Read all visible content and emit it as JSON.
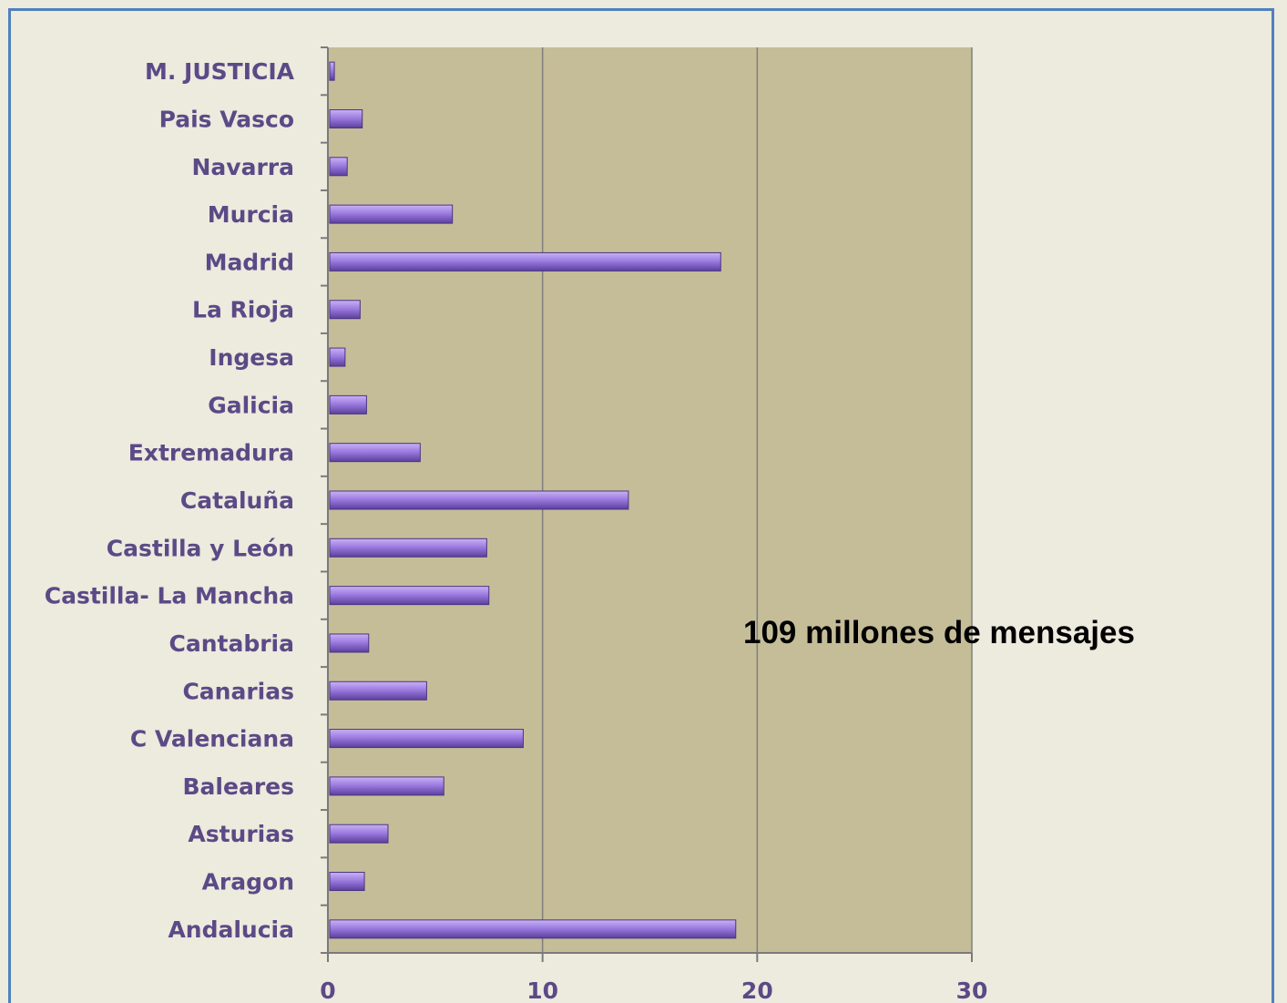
{
  "colors": {
    "background": "#edeade",
    "plot_area": "#c5bd98",
    "frame_border": "#4f81bd",
    "bar": "#9d7ce0",
    "label_text": "#5b4a86",
    "gridline": "#7f7f7f"
  },
  "chart_data": {
    "type": "bar",
    "orientation": "horizontal",
    "categories": [
      "M. JUSTICIA",
      "Pais Vasco",
      "Navarra",
      "Murcia",
      "Madrid",
      "La Rioja",
      "Ingesa",
      "Galicia",
      "Extremadura",
      "Cataluña",
      "Castilla y León",
      "Castilla- La Mancha",
      "Cantabria",
      "Canarias",
      "C Valenciana",
      "Baleares",
      "Asturias",
      "Aragon",
      "Andalucia"
    ],
    "values": [
      0.3,
      1.6,
      0.9,
      5.8,
      18.3,
      1.5,
      0.8,
      1.8,
      4.3,
      14.0,
      7.4,
      7.5,
      1.9,
      4.6,
      9.1,
      5.4,
      2.8,
      1.7,
      19.0
    ],
    "xlim": [
      0,
      30
    ],
    "xticks": [
      0,
      10,
      20,
      30
    ],
    "grid": true,
    "annotation": "109 millones de mensajes"
  }
}
